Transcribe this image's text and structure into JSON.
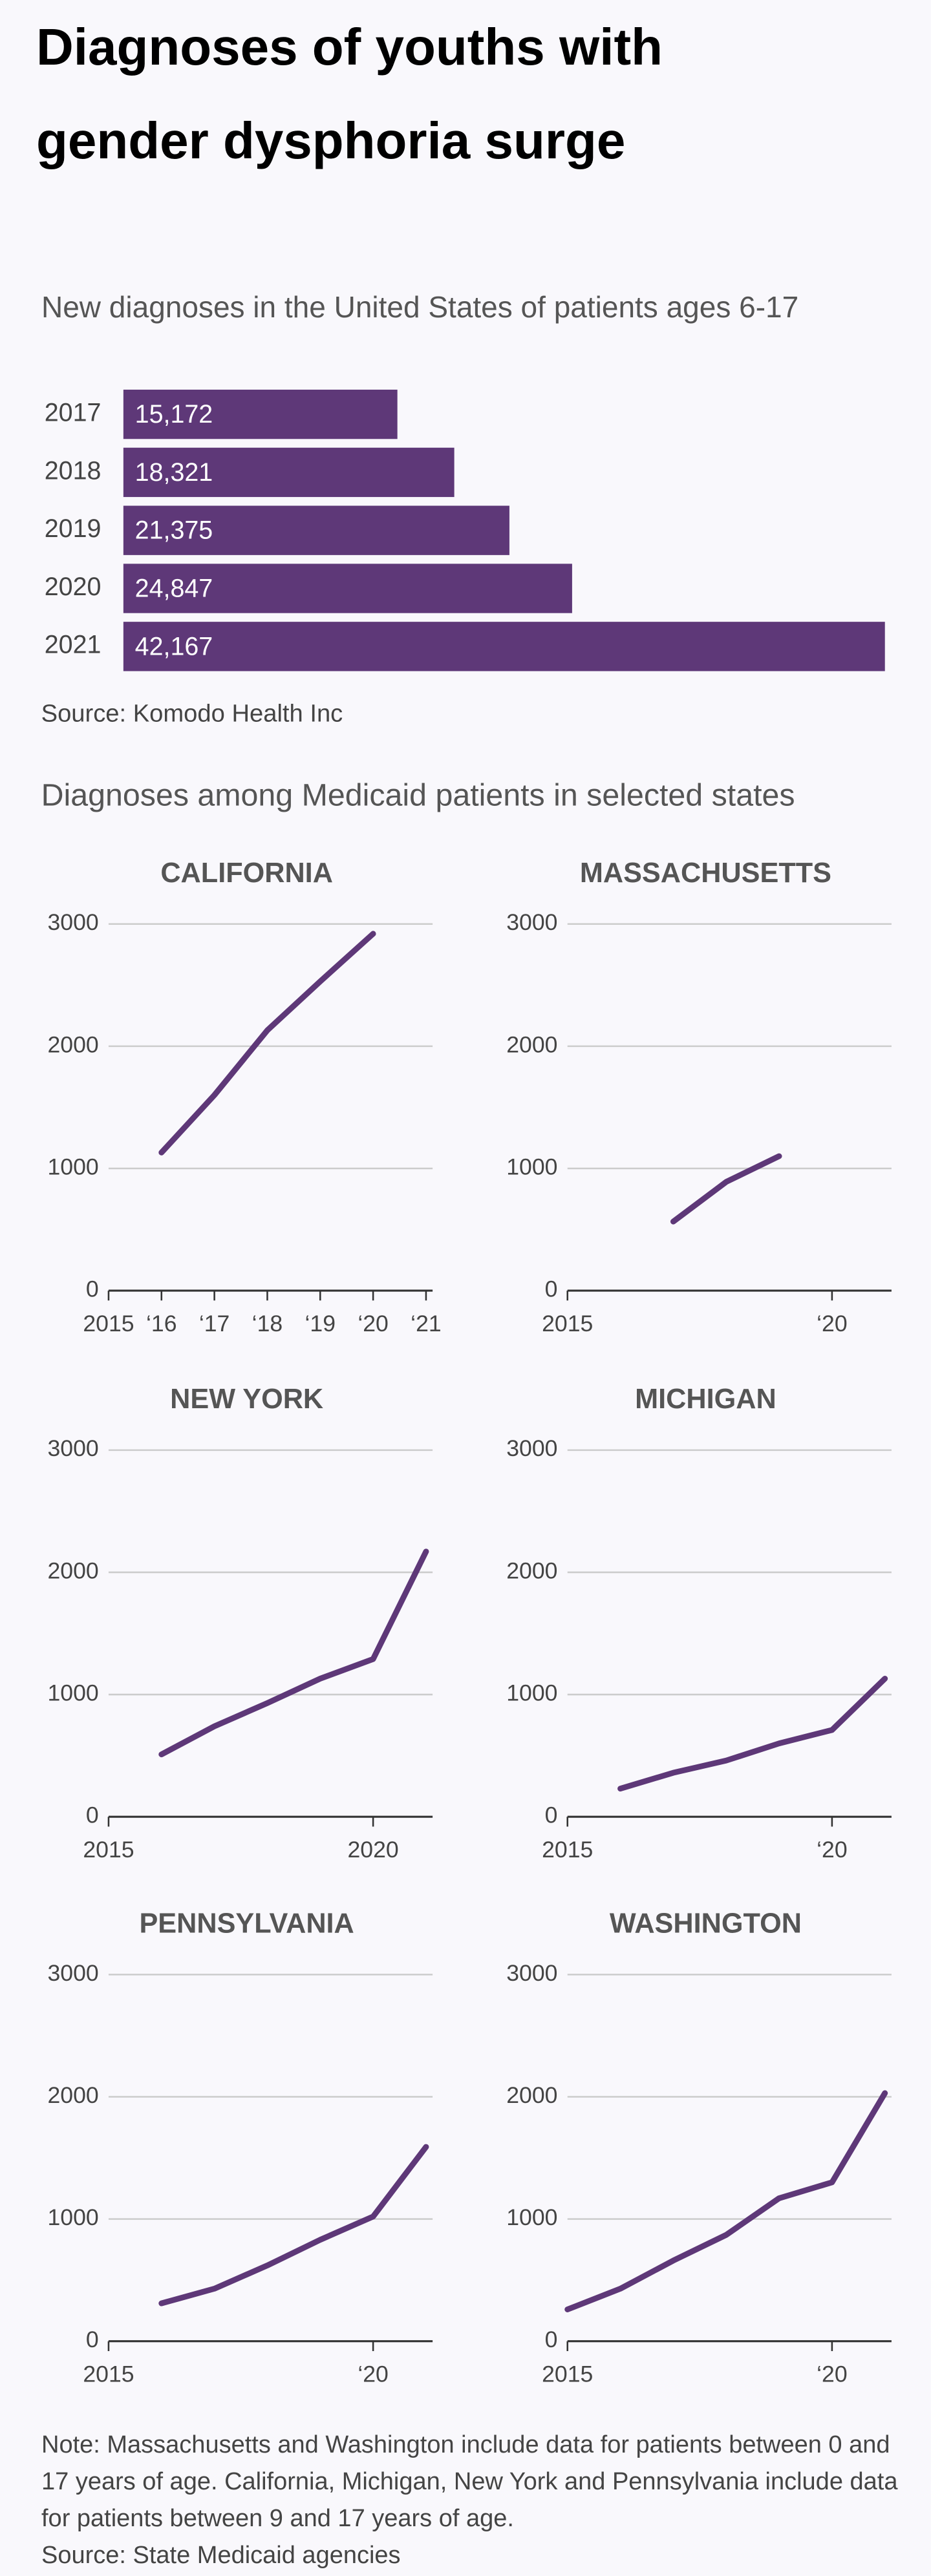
{
  "title": "Diagnoses of youths with gender dysphoria surge",
  "chart_data": [
    {
      "type": "bar",
      "title": "New diagnoses in the United States of patients ages 6-17",
      "categories": [
        "2017",
        "2018",
        "2019",
        "2020",
        "2021"
      ],
      "values": [
        15172,
        18321,
        21375,
        24847,
        42167
      ],
      "value_labels": [
        "15,172",
        "18,321",
        "21,375",
        "24,847",
        "42,167"
      ],
      "color": "#5e3878",
      "source": "Source: Komodo Health Inc"
    },
    {
      "type": "line",
      "title": "CALIFORNIA",
      "x": [
        2016,
        2017,
        2018,
        2019,
        2020
      ],
      "values": [
        1130,
        1600,
        2130,
        2530,
        2920
      ],
      "color": "#5e3878",
      "xlim": [
        2015,
        2021
      ],
      "ylim": [
        0,
        3000
      ],
      "yticks": [
        0,
        1000,
        2000,
        3000
      ],
      "grid": true,
      "xticks": [
        2015,
        {
          "value": 2016,
          "label": "‘16"
        },
        {
          "value": 2017,
          "label": "‘17"
        },
        {
          "value": 2018,
          "label": "‘18"
        },
        {
          "value": 2019,
          "label": "‘19"
        },
        {
          "value": 2020,
          "label": "‘20"
        },
        {
          "value": 2021,
          "label": "‘21"
        }
      ]
    },
    {
      "type": "line",
      "title": "MASSACHUSETTS",
      "x": [
        2017,
        2018,
        2019
      ],
      "values": [
        565,
        890,
        1100
      ],
      "color": "#5e3878",
      "xlim": [
        2015,
        2021
      ],
      "ylim": [
        0,
        3000
      ],
      "yticks": [
        0,
        1000,
        2000,
        3000
      ],
      "grid": true,
      "xticks": [
        2015,
        {
          "value": 2020,
          "label": "‘20"
        }
      ]
    },
    {
      "type": "line",
      "title": "NEW YORK",
      "x": [
        2016,
        2017,
        2018,
        2019,
        2020,
        2021
      ],
      "values": [
        510,
        740,
        930,
        1130,
        1290,
        2170
      ],
      "color": "#5e3878",
      "xlim": [
        2015,
        2021
      ],
      "ylim": [
        0,
        3000
      ],
      "yticks": [
        0,
        1000,
        2000,
        3000
      ],
      "grid": true,
      "xticks": [
        2015,
        2020
      ]
    },
    {
      "type": "line",
      "title": "MICHIGAN",
      "x": [
        2016,
        2017,
        2018,
        2019,
        2020,
        2021
      ],
      "values": [
        230,
        360,
        460,
        600,
        710,
        1130
      ],
      "color": "#5e3878",
      "xlim": [
        2015,
        2021
      ],
      "ylim": [
        0,
        3000
      ],
      "yticks": [
        0,
        1000,
        2000,
        3000
      ],
      "grid": true,
      "xticks": [
        2015,
        {
          "value": 2020,
          "label": "‘20"
        }
      ]
    },
    {
      "type": "line",
      "title": "PENNSYLVANIA",
      "x": [
        2016,
        2017,
        2018,
        2019,
        2020,
        2021
      ],
      "values": [
        310,
        430,
        620,
        830,
        1020,
        1590
      ],
      "color": "#5e3878",
      "xlim": [
        2015,
        2021
      ],
      "ylim": [
        0,
        3000
      ],
      "yticks": [
        0,
        1000,
        2000,
        3000
      ],
      "grid": true,
      "xticks": [
        2015,
        {
          "value": 2020,
          "label": "‘20"
        }
      ]
    },
    {
      "type": "line",
      "title": "WASHINGTON",
      "x": [
        2015,
        2016,
        2017,
        2018,
        2019,
        2020,
        2021
      ],
      "values": [
        260,
        430,
        660,
        870,
        1170,
        1300,
        2030
      ],
      "color": "#5e3878",
      "xlim": [
        2015,
        2021
      ],
      "ylim": [
        0,
        3000
      ],
      "yticks": [
        0,
        1000,
        2000,
        3000
      ],
      "grid": true,
      "xticks": [
        2015,
        {
          "value": 2020,
          "label": "‘20"
        }
      ]
    }
  ],
  "medicaid_title": "Diagnoses among Medicaid patients in selected states",
  "note": "Note: Massachusetts and Washington include data for patients between 0 and 17 years of age. California, Michigan, New York and Pennsylvania include data for patients between 9 and 17 years of age.",
  "source": "Source: State Medicaid agencies"
}
